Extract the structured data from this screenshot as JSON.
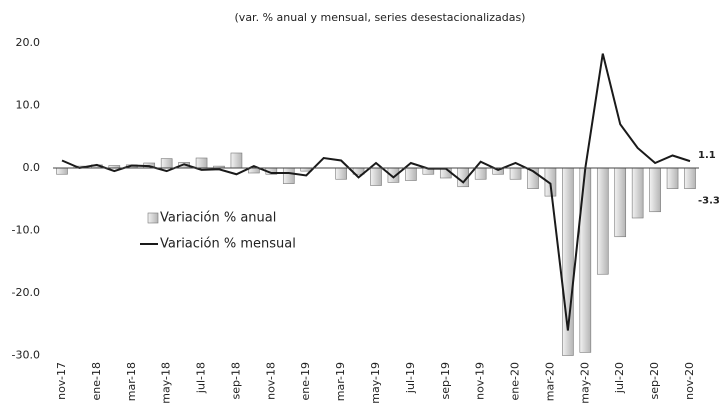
{
  "chart_data": {
    "type": "bar_line",
    "title": "(var. % anual y mensual, series desestacionalizadas)",
    "categories": [
      "nov-17",
      null,
      "ene-18",
      null,
      "mar-18",
      null,
      "may-18",
      null,
      "jul-18",
      null,
      "sep-18",
      null,
      "nov-18",
      null,
      "ene-19",
      null,
      "mar-19",
      null,
      "may-19",
      null,
      "jul-19",
      null,
      "sep-19",
      null,
      "nov-19",
      null,
      "ene-20",
      null,
      "mar-20",
      null,
      "may-20",
      null,
      "jul-20",
      null,
      "sep-20",
      null,
      "nov-20"
    ],
    "series": [
      {
        "name": "Variación % anual",
        "type": "bar",
        "color": "#b4b4b4",
        "values": [
          -1.0,
          0.3,
          0.5,
          0.4,
          0.5,
          0.8,
          1.5,
          0.9,
          1.6,
          0.3,
          2.4,
          -0.8,
          -1.0,
          -2.5,
          -0.5,
          0.0,
          -1.8,
          -1.0,
          -2.8,
          -2.3,
          -2.0,
          -1.0,
          -1.6,
          -3.0,
          -1.8,
          -1.0,
          -1.8,
          -3.3,
          -4.5,
          -30.0,
          -29.5,
          -17.0,
          -11.0,
          -8.0,
          -7.0,
          -3.3,
          -3.3
        ]
      },
      {
        "name": "Variación % mensual",
        "type": "line",
        "color": "#1a1a1a",
        "values": [
          1.2,
          0.0,
          0.5,
          -0.5,
          0.4,
          0.3,
          -0.5,
          0.6,
          -0.3,
          -0.2,
          -1.0,
          0.3,
          -0.8,
          -0.8,
          -1.2,
          1.6,
          1.2,
          -1.5,
          0.8,
          -1.5,
          0.8,
          -0.1,
          -0.1,
          -2.3,
          1.0,
          -0.3,
          0.8,
          -0.5,
          -2.5,
          -26.0,
          0.0,
          18.3,
          7.0,
          3.2,
          0.8,
          2.0,
          1.1
        ]
      }
    ],
    "ylim": [
      -30,
      22
    ],
    "yticks": [
      {
        "value": 20,
        "label": "20.0"
      },
      {
        "value": 10,
        "label": "10.0"
      },
      {
        "value": 0,
        "label": "0.0"
      },
      {
        "value": -10,
        "label": "-10.0"
      },
      {
        "value": -20,
        "label": "-20.0"
      },
      {
        "value": -30,
        "label": "-30.0"
      }
    ],
    "grid": false,
    "legend": "left"
  }
}
